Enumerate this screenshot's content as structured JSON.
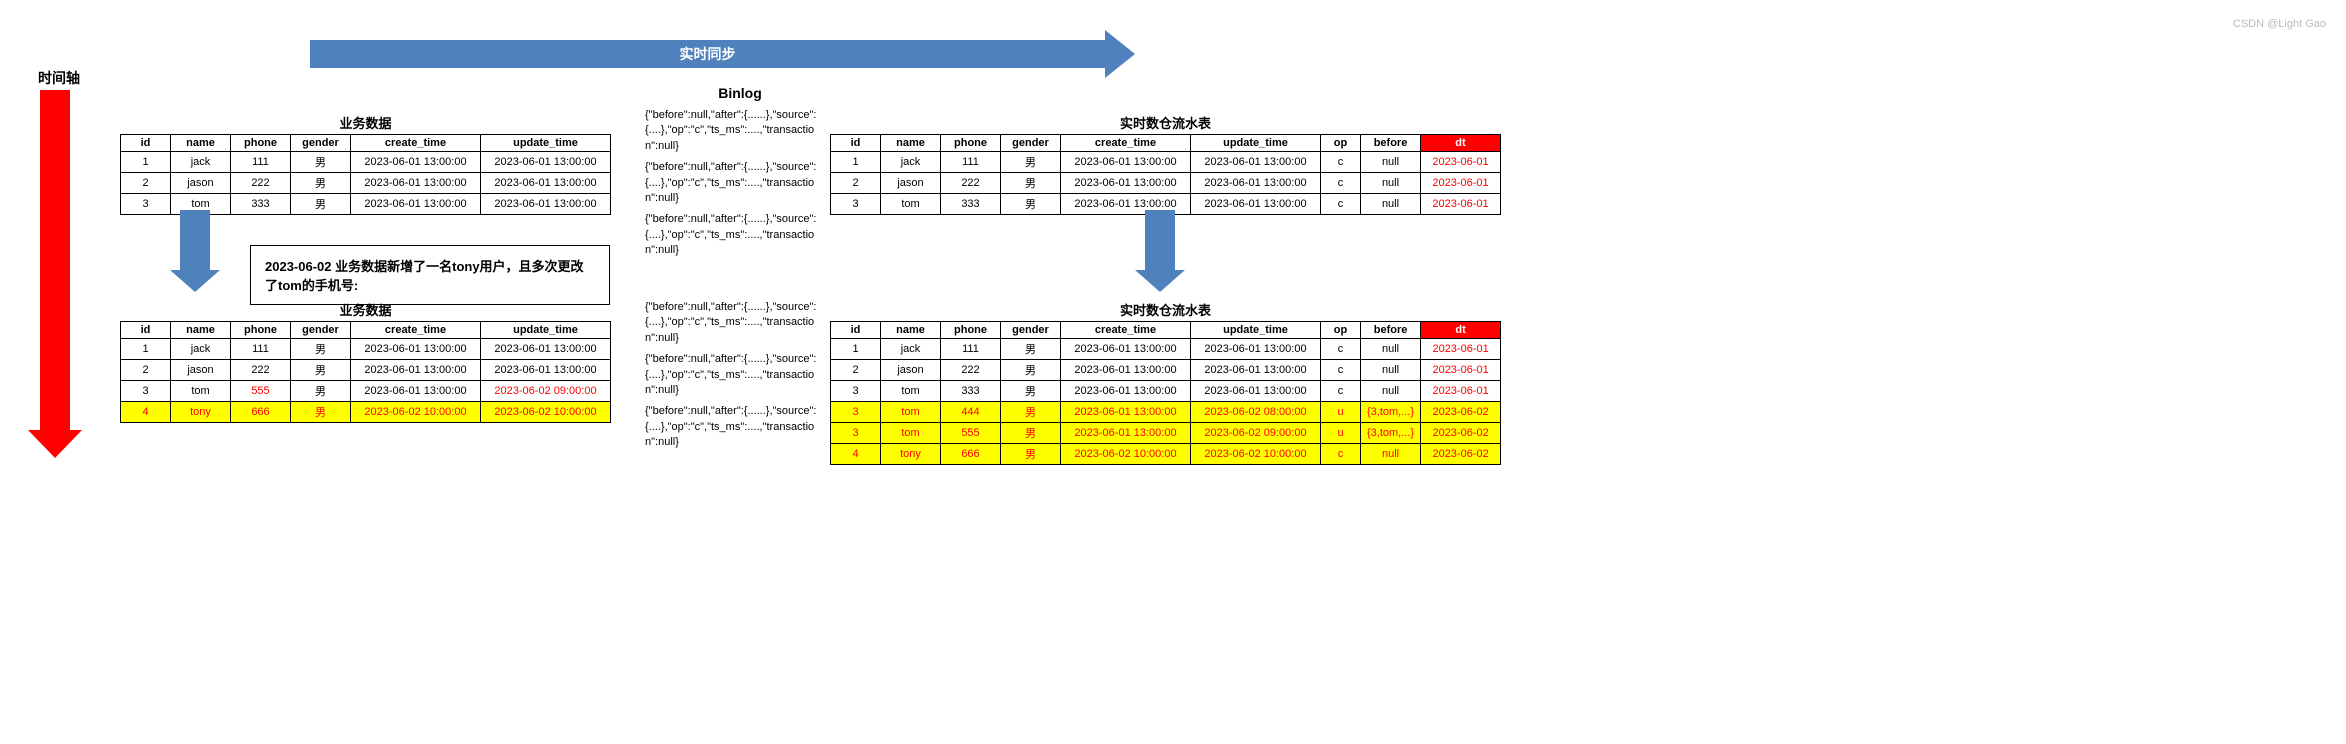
{
  "labels": {
    "timeline": "时间轴",
    "sync": "实时同步",
    "binlog": "Binlog",
    "biz_title": "业务数据",
    "dw_title": "实时数仓流水表",
    "callout": "2023-06-02 业务数据新增了一名tony用户，且多次更改了tom的手机号:",
    "watermark": "CSDN @Light Gao"
  },
  "biz_headers": [
    "id",
    "name",
    "phone",
    "gender",
    "create_time",
    "update_time"
  ],
  "dw_headers": [
    "id",
    "name",
    "phone",
    "gender",
    "create_time",
    "update_time",
    "op",
    "before",
    "dt"
  ],
  "biz1_rows": [
    {
      "cells": [
        "1",
        "jack",
        "111",
        "男",
        "2023-06-01 13:00:00",
        "2023-06-01 13:00:00"
      ]
    },
    {
      "cells": [
        "2",
        "jason",
        "222",
        "男",
        "2023-06-01 13:00:00",
        "2023-06-01 13:00:00"
      ]
    },
    {
      "cells": [
        "3",
        "tom",
        "333",
        "男",
        "2023-06-01 13:00:00",
        "2023-06-01 13:00:00"
      ]
    }
  ],
  "biz2_rows": [
    {
      "cells": [
        "1",
        "jack",
        "111",
        "男",
        "2023-06-01 13:00:00",
        "2023-06-01 13:00:00"
      ]
    },
    {
      "cells": [
        "2",
        "jason",
        "222",
        "男",
        "2023-06-01 13:00:00",
        "2023-06-01 13:00:00"
      ]
    },
    {
      "cells": [
        "3",
        "tom",
        "555",
        "男",
        "2023-06-01 13:00:00",
        "2023-06-02 09:00:00"
      ],
      "red_idx": [
        2,
        5
      ]
    },
    {
      "cells": [
        "4",
        "tony",
        "666",
        "男",
        "2023-06-02 10:00:00",
        "2023-06-02 10:00:00"
      ],
      "yellow": true,
      "all_red": true
    }
  ],
  "dw1_rows": [
    {
      "cells": [
        "1",
        "jack",
        "111",
        "男",
        "2023-06-01 13:00:00",
        "2023-06-01 13:00:00",
        "c",
        "null",
        "2023-06-01"
      ],
      "dt_red": true
    },
    {
      "cells": [
        "2",
        "jason",
        "222",
        "男",
        "2023-06-01 13:00:00",
        "2023-06-01 13:00:00",
        "c",
        "null",
        "2023-06-01"
      ],
      "dt_red": true
    },
    {
      "cells": [
        "3",
        "tom",
        "333",
        "男",
        "2023-06-01 13:00:00",
        "2023-06-01 13:00:00",
        "c",
        "null",
        "2023-06-01"
      ],
      "dt_red": true
    }
  ],
  "dw2_rows": [
    {
      "cells": [
        "1",
        "jack",
        "111",
        "男",
        "2023-06-01 13:00:00",
        "2023-06-01 13:00:00",
        "c",
        "null",
        "2023-06-01"
      ],
      "dt_red": true
    },
    {
      "cells": [
        "2",
        "jason",
        "222",
        "男",
        "2023-06-01 13:00:00",
        "2023-06-01 13:00:00",
        "c",
        "null",
        "2023-06-01"
      ],
      "dt_red": true
    },
    {
      "cells": [
        "3",
        "tom",
        "333",
        "男",
        "2023-06-01 13:00:00",
        "2023-06-01 13:00:00",
        "c",
        "null",
        "2023-06-01"
      ],
      "dt_red": true
    },
    {
      "cells": [
        "3",
        "tom",
        "444",
        "男",
        "2023-06-01 13:00:00",
        "2023-06-02 08:00:00",
        "u",
        "{3,tom,...}",
        "2023-06-02"
      ],
      "yellow": true,
      "all_red": true
    },
    {
      "cells": [
        "3",
        "tom",
        "555",
        "男",
        "2023-06-01 13:00:00",
        "2023-06-02 09:00:00",
        "u",
        "{3,tom,...}",
        "2023-06-02"
      ],
      "yellow": true,
      "all_red": true
    },
    {
      "cells": [
        "4",
        "tony",
        "666",
        "男",
        "2023-06-02 10:00:00",
        "2023-06-02 10:00:00",
        "c",
        "null",
        "2023-06-02"
      ],
      "yellow": true,
      "all_red": true
    }
  ],
  "binlog1": [
    "{\"before\":null,\"after\":{......},\"source\":{....},\"op\":\"c\",\"ts_ms\":....,\"transaction\":null}",
    "{\"before\":null,\"after\":{......},\"source\":{....},\"op\":\"c\",\"ts_ms\":....,\"transaction\":null}",
    "{\"before\":null,\"after\":{......},\"source\":{....},\"op\":\"c\",\"ts_ms\":....,\"transaction\":null}"
  ],
  "binlog2": [
    "{\"before\":null,\"after\":{......},\"source\":{....},\"op\":\"c\",\"ts_ms\":....,\"transaction\":null}",
    "{\"before\":null,\"after\":{......},\"source\":{....},\"op\":\"c\",\"ts_ms\":....,\"transaction\":null}",
    "{\"before\":null,\"after\":{......},\"source\":{....},\"op\":\"c\",\"ts_ms\":....,\"transaction\":null}"
  ],
  "style": {
    "col_widths_biz": [
      50,
      60,
      60,
      60,
      130,
      130
    ],
    "col_widths_dw": [
      50,
      60,
      60,
      60,
      130,
      130,
      40,
      60,
      80
    ],
    "colors": {
      "arrow_blue": "#4f81bd",
      "arrow_red": "#ff0000",
      "highlight_yellow": "#ffff00",
      "highlight_red_text": "#ff0000",
      "dt_header_bg": "#ff0000"
    }
  }
}
